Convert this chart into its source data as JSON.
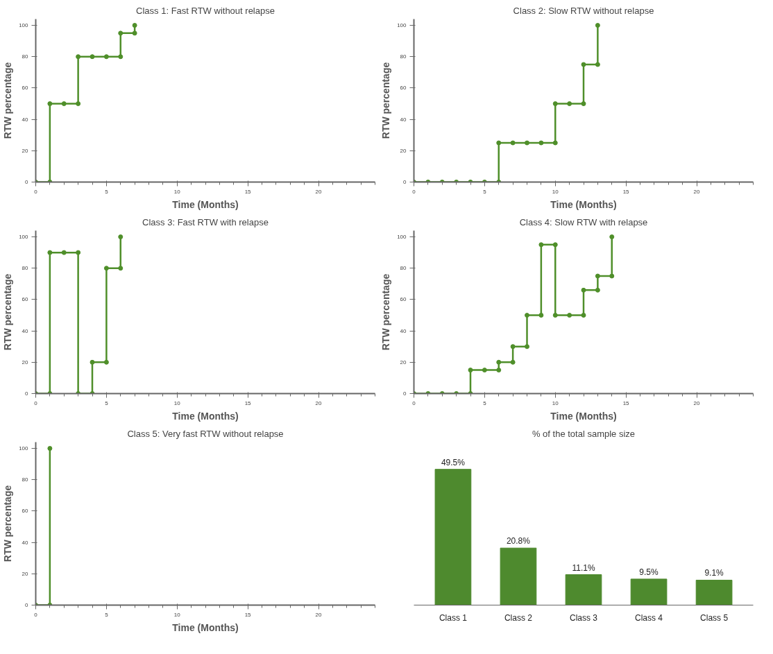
{
  "chart_data": [
    {
      "type": "line",
      "title": "Class 1: Fast RTW without relapse",
      "xlabel": "Time (Months)",
      "ylabel": "RTW percentage",
      "xlim": [
        0,
        24
      ],
      "xticks": [
        0,
        5,
        10,
        15,
        20
      ],
      "ylim": [
        0,
        104
      ],
      "yticks": [
        0,
        20,
        40,
        60,
        80,
        100
      ],
      "grid": false,
      "marker": "circle",
      "line_style": "solid",
      "series": [
        {
          "color": "#4f8f2a",
          "x": [
            0,
            1,
            1,
            2,
            3,
            3,
            4,
            5,
            6,
            6,
            7,
            7
          ],
          "values": [
            0,
            0,
            50,
            50,
            50,
            80,
            80,
            80,
            80,
            95,
            95,
            100
          ]
        }
      ]
    },
    {
      "type": "line",
      "title": "Class 2: Slow RTW without relapse",
      "xlabel": "Time (Months)",
      "ylabel": "RTW percentage",
      "xlim": [
        0,
        24
      ],
      "xticks": [
        0,
        5,
        10,
        15,
        20
      ],
      "ylim": [
        0,
        104
      ],
      "yticks": [
        0,
        20,
        40,
        60,
        80,
        100
      ],
      "grid": false,
      "marker": "circle",
      "line_style": "solid",
      "series": [
        {
          "color": "#4f8f2a",
          "x": [
            0,
            1,
            2,
            3,
            4,
            5,
            6,
            6,
            7,
            8,
            9,
            10,
            10,
            11,
            12,
            12,
            13,
            13
          ],
          "values": [
            0,
            0,
            0,
            0,
            0,
            0,
            0,
            25,
            25,
            25,
            25,
            25,
            50,
            50,
            50,
            75,
            75,
            100
          ]
        }
      ]
    },
    {
      "type": "line",
      "title": "Class 3: Fast RTW with relapse",
      "xlabel": "Time (Months)",
      "ylabel": "RTW percentage",
      "xlim": [
        0,
        24
      ],
      "xticks": [
        0,
        5,
        10,
        15,
        20
      ],
      "ylim": [
        0,
        104
      ],
      "yticks": [
        0,
        20,
        40,
        60,
        80,
        100
      ],
      "grid": false,
      "marker": "circle",
      "line_style": "solid",
      "series": [
        {
          "color": "#4f8f2a",
          "x": [
            0,
            1,
            1,
            2,
            3,
            3,
            4,
            4,
            5,
            5,
            6,
            6
          ],
          "values": [
            0,
            0,
            90,
            90,
            90,
            0,
            0,
            20,
            20,
            80,
            80,
            100
          ]
        }
      ]
    },
    {
      "type": "line",
      "title": "Class 4: Slow RTW with relapse",
      "xlabel": "Time (Months)",
      "ylabel": "RTW percentage",
      "xlim": [
        0,
        24
      ],
      "xticks": [
        0,
        5,
        10,
        15,
        20
      ],
      "ylim": [
        0,
        104
      ],
      "yticks": [
        0,
        20,
        40,
        60,
        80,
        100
      ],
      "grid": false,
      "marker": "circle",
      "line_style": "solid",
      "series": [
        {
          "color": "#4f8f2a",
          "x": [
            0,
            1,
            2,
            3,
            4,
            4,
            5,
            6,
            6,
            7,
            7,
            8,
            8,
            9,
            9,
            10,
            10,
            11,
            12,
            12,
            13,
            13,
            14,
            14
          ],
          "values": [
            0,
            0,
            0,
            0,
            0,
            15,
            15,
            15,
            20,
            20,
            30,
            30,
            50,
            50,
            95,
            95,
            50,
            50,
            50,
            66,
            66,
            75,
            75,
            100
          ]
        }
      ]
    },
    {
      "type": "line",
      "title": "Class 5: Very fast RTW without relapse",
      "xlabel": "Time (Months)",
      "ylabel": "RTW percentage",
      "xlim": [
        0,
        24
      ],
      "xticks": [
        0,
        5,
        10,
        15,
        20
      ],
      "ylim": [
        0,
        104
      ],
      "yticks": [
        0,
        20,
        40,
        60,
        80,
        100
      ],
      "grid": false,
      "marker": "circle",
      "line_style": "solid",
      "series": [
        {
          "color": "#4f8f2a",
          "x": [
            0,
            1,
            1
          ],
          "values": [
            0,
            0,
            100
          ]
        }
      ]
    },
    {
      "type": "bar",
      "title": "% of the total sample size",
      "categories": [
        "Class 1",
        "Class 2",
        "Class 3",
        "Class 4",
        "Class 5"
      ],
      "values": [
        49.5,
        20.8,
        11.1,
        9.5,
        9.1
      ],
      "value_labels": [
        "49.5%",
        "20.8%",
        "11.1%",
        "9.5%",
        "9.1%"
      ],
      "color": "#4e8a2e",
      "grid": false,
      "tick_labels": "x"
    }
  ]
}
